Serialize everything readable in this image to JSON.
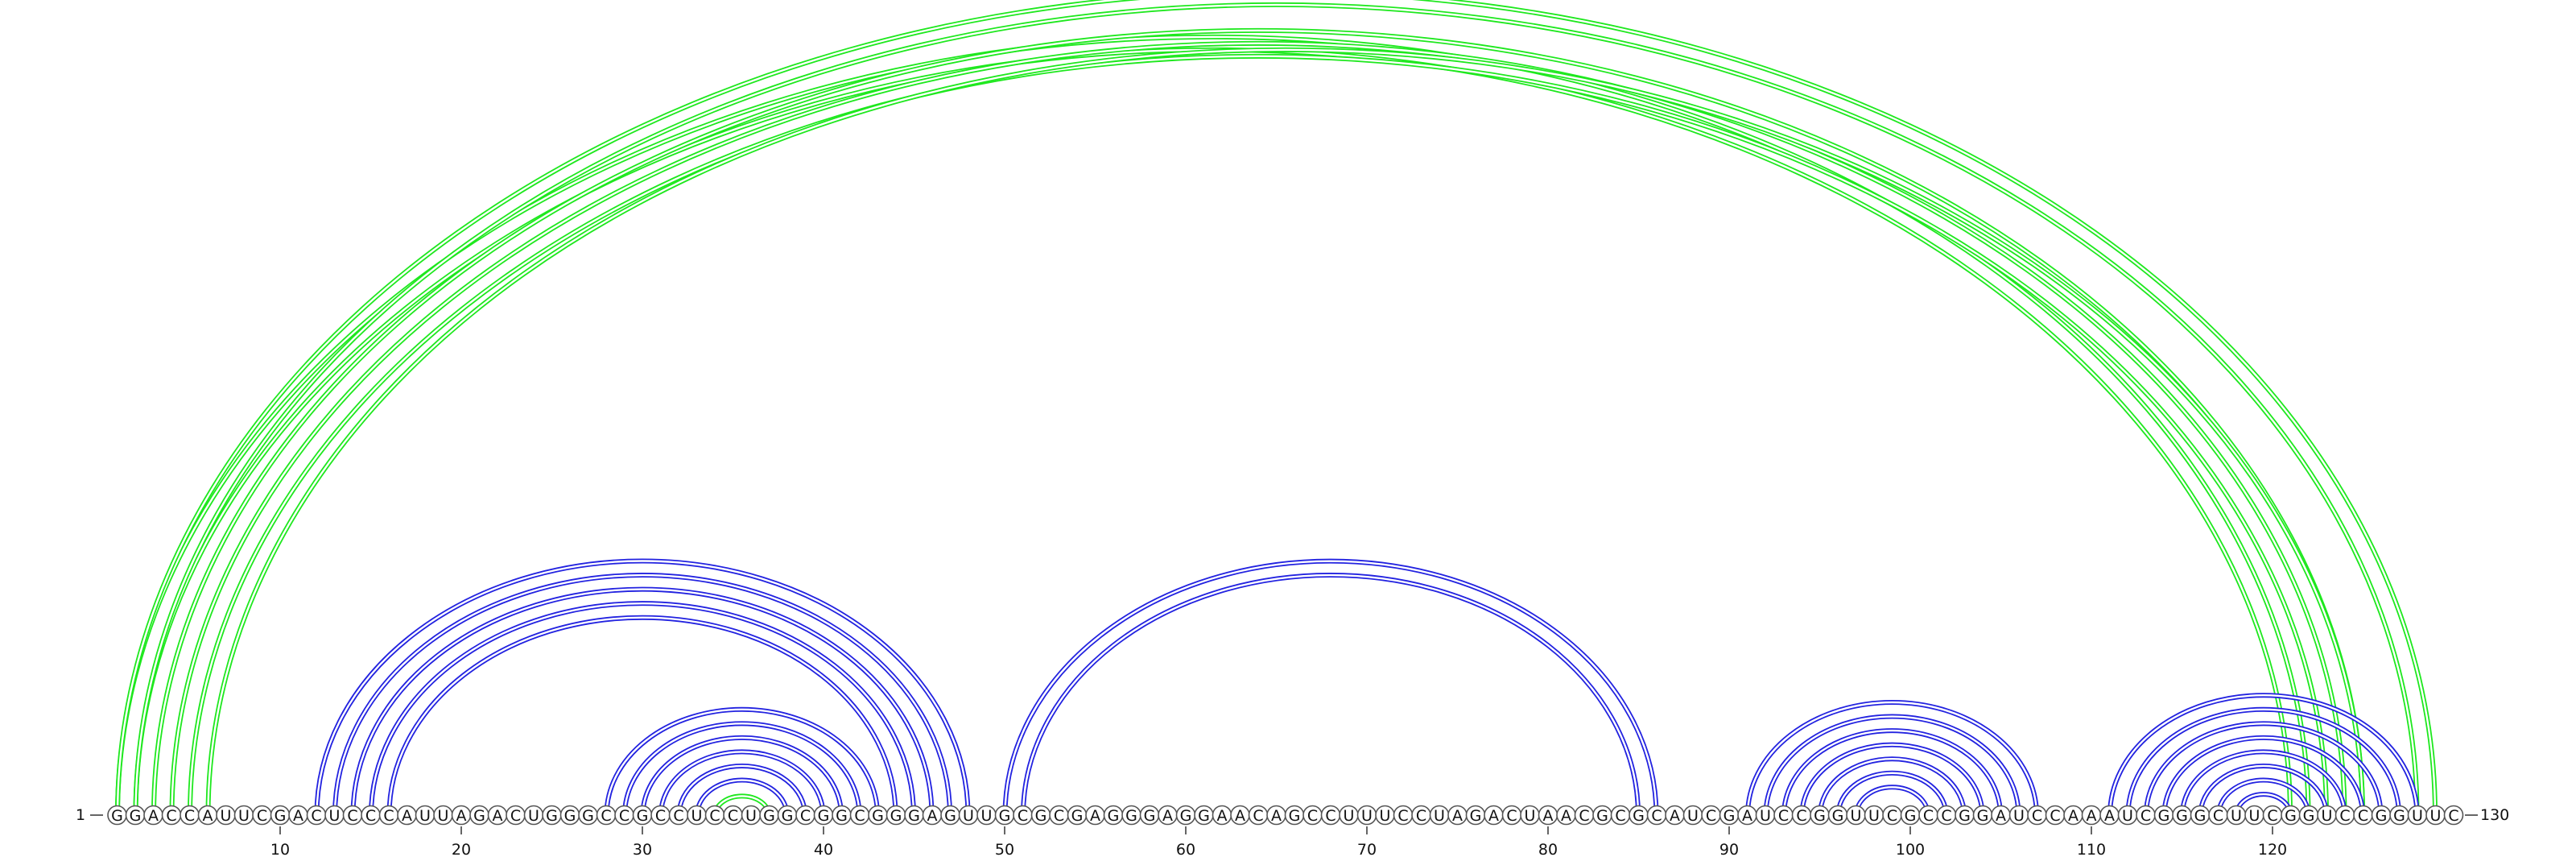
{
  "sequence": {
    "text": "GGACCAUUCGACUCCCAUUAGACUGGGCCGCCUCCUGGCGGCGGGAGUUGCGCGAGGGAGGAACAGCCUUUCCUAGACUAACGCGCAUCGAUCCGGUUCGCCGGAUCCAAAUCGGGCUUCGGUCCGGUUC",
    "length": 130,
    "start_label": "1",
    "end_label": "130"
  },
  "axis": {
    "ticks": [
      {
        "position": 10,
        "label": "10"
      },
      {
        "position": 20,
        "label": "20"
      },
      {
        "position": 30,
        "label": "30"
      },
      {
        "position": 40,
        "label": "40"
      },
      {
        "position": 50,
        "label": "50"
      },
      {
        "position": 60,
        "label": "60"
      },
      {
        "position": 70,
        "label": "70"
      },
      {
        "position": 80,
        "label": "80"
      },
      {
        "position": 90,
        "label": "90"
      },
      {
        "position": 100,
        "label": "100"
      },
      {
        "position": 110,
        "label": "110"
      },
      {
        "position": 120,
        "label": "120"
      }
    ]
  },
  "colors": {
    "upper_arcs": "#1ee81e",
    "lower_arcs": "#2222e0"
  },
  "arc_groups": [
    {
      "name": "upper-long-helix",
      "color": "upper_arcs",
      "pairs": [
        [
          1,
          122
        ],
        [
          2,
          121
        ],
        [
          3,
          125
        ],
        [
          4,
          124
        ],
        [
          5,
          123
        ],
        [
          6,
          125
        ]
      ]
    },
    {
      "name": "upper-outer-pair",
      "color": "upper_arcs",
      "pairs": [
        [
          1,
          129
        ],
        [
          2,
          128
        ]
      ]
    },
    {
      "name": "upper-small-loop",
      "color": "upper_arcs",
      "pairs": [
        [
          34,
          37
        ]
      ]
    },
    {
      "name": "lower-helix-a",
      "color": "lower_arcs",
      "pairs": [
        [
          12,
          48
        ],
        [
          13,
          47
        ],
        [
          14,
          46
        ],
        [
          15,
          45
        ],
        [
          16,
          44
        ]
      ]
    },
    {
      "name": "lower-helix-b",
      "color": "lower_arcs",
      "pairs": [
        [
          28,
          43
        ],
        [
          29,
          42
        ],
        [
          30,
          41
        ],
        [
          31,
          40
        ],
        [
          32,
          39
        ],
        [
          33,
          38
        ]
      ]
    },
    {
      "name": "lower-helix-c",
      "color": "lower_arcs",
      "pairs": [
        [
          50,
          86
        ],
        [
          51,
          85
        ]
      ]
    },
    {
      "name": "lower-helix-d",
      "color": "lower_arcs",
      "pairs": [
        [
          91,
          107
        ],
        [
          92,
          106
        ],
        [
          93,
          105
        ],
        [
          94,
          104
        ],
        [
          95,
          103
        ],
        [
          96,
          102
        ],
        [
          97,
          101
        ]
      ]
    },
    {
      "name": "lower-helix-e",
      "color": "lower_arcs",
      "pairs": [
        [
          111,
          128
        ],
        [
          112,
          127
        ],
        [
          113,
          126
        ],
        [
          114,
          125
        ],
        [
          115,
          124
        ],
        [
          116,
          123
        ],
        [
          117,
          122
        ],
        [
          118,
          121
        ]
      ]
    }
  ]
}
